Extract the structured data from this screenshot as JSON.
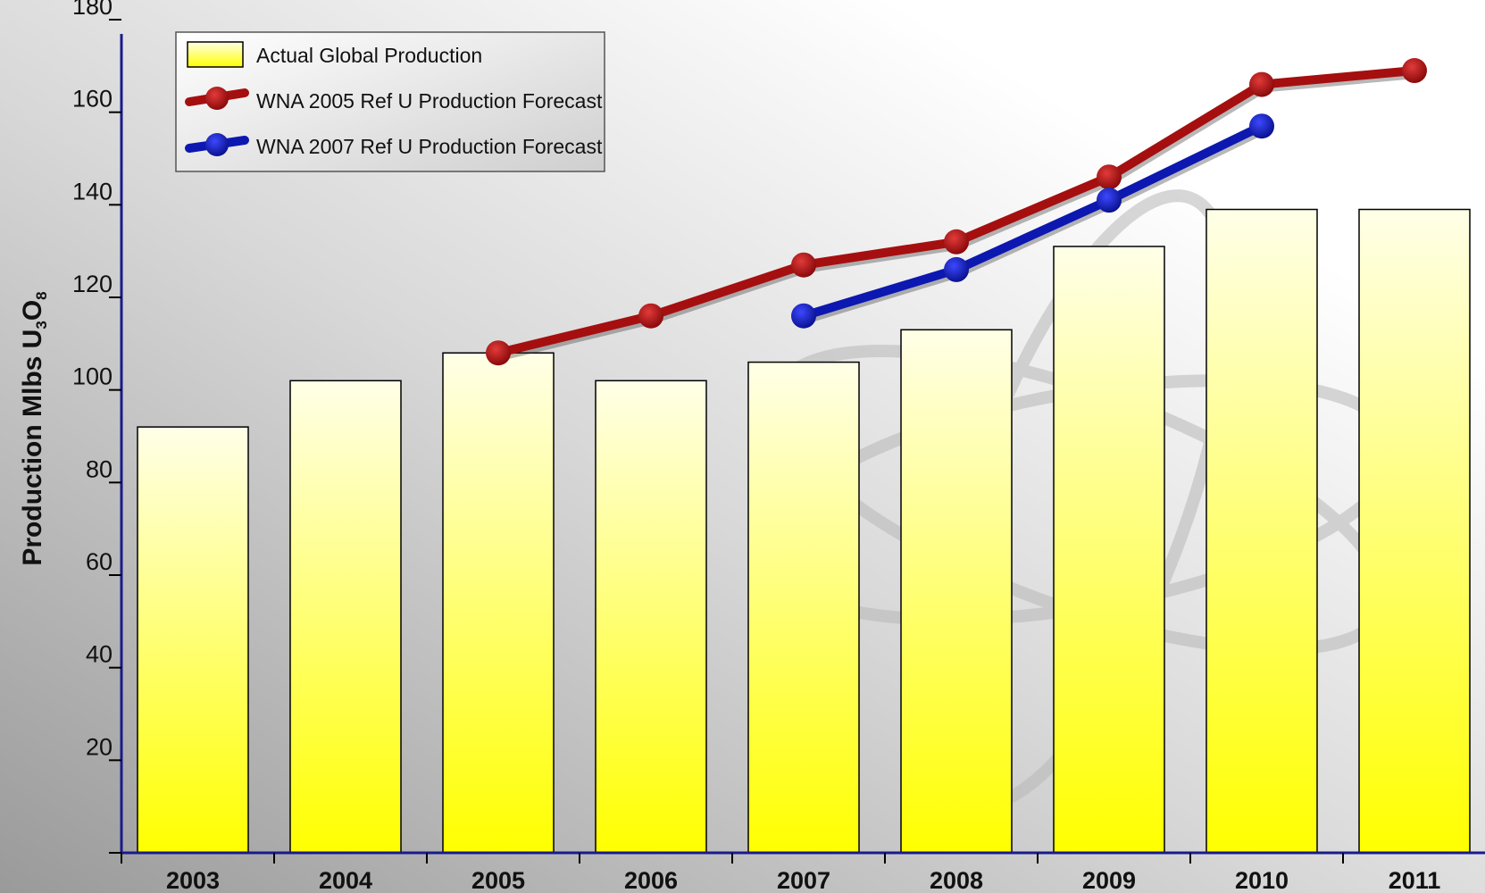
{
  "chart_data": {
    "type": "bar",
    "title": "",
    "xlabel": "",
    "ylabel": {
      "main": "Production Mlbs U",
      "sub1": "3",
      "mid": "O",
      "sub2": "8"
    },
    "categories": [
      "2003",
      "2004",
      "2005",
      "2006",
      "2007",
      "2008",
      "2009",
      "2010",
      "2011"
    ],
    "ylim": [
      0,
      180
    ],
    "yticks": [
      "",
      "20",
      "40",
      "60",
      "80",
      "100",
      "120",
      "140",
      "160",
      "180"
    ],
    "grid": false,
    "legend_position": "top-left",
    "series": [
      {
        "name": "Actual Global Production",
        "kind": "bar",
        "values": [
          92,
          102,
          108,
          102,
          106,
          113,
          131,
          139,
          139
        ]
      },
      {
        "name": "WNA 2005 Ref U Production Forecast",
        "kind": "line",
        "color": "#a50f0f",
        "values": [
          null,
          null,
          108,
          116,
          127,
          132,
          146,
          166,
          169
        ]
      },
      {
        "name": "WNA 2007 Ref U Production Forecast",
        "kind": "line",
        "color": "#0c18b0",
        "values": [
          null,
          null,
          null,
          null,
          116,
          126,
          141,
          157,
          null
        ]
      }
    ],
    "colors": {
      "bar_top": "#ffffe6",
      "bar_bottom": "#ffff00",
      "axis": "#1a1a8c"
    }
  }
}
